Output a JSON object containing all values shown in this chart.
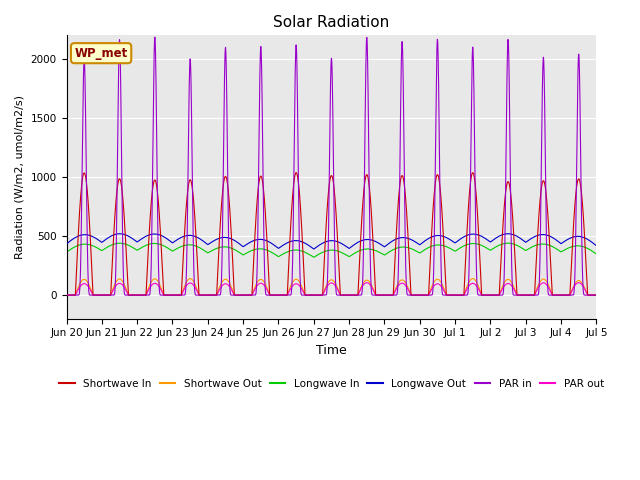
{
  "title": "Solar Radiation",
  "xlabel": "Time",
  "ylabel": "Radiation (W/m2, umol/m2/s)",
  "ylim": [
    -200,
    2200
  ],
  "n_days": 15,
  "background_color": "#e8e8e8",
  "fig_background_color": "#ffffff",
  "grid_color": "#ffffff",
  "label_box_text": "WP_met",
  "label_box_facecolor": "#ffffcc",
  "label_box_edgecolor": "#cc8800",
  "label_box_textcolor": "#880000",
  "tick_labels": [
    "Jun 20",
    "Jun 21",
    "Jun 22",
    "Jun 23",
    "Jun 24",
    "Jun 25",
    "Jun 26",
    "Jun 27",
    "Jun 28",
    "Jun 29",
    "Jun 30",
    "Jul 1",
    "Jul 2",
    "Jul 3",
    "Jul 4",
    "Jul 5"
  ],
  "series": {
    "shortwave_in": {
      "color": "#cc0000",
      "label": "Shortwave In",
      "peak": 1000,
      "rise": 0.25,
      "fall": 0.75
    },
    "shortwave_out": {
      "color": "#ff9900",
      "label": "Shortwave Out",
      "peak": 130,
      "rise": 0.25,
      "fall": 0.75
    },
    "longwave_in": {
      "color": "#00cc00",
      "label": "Longwave In",
      "baseline": 350,
      "amplitude": 60
    },
    "longwave_out": {
      "color": "#0000cc",
      "label": "Longwave Out",
      "baseline": 420,
      "amplitude": 70
    },
    "par_in": {
      "color": "#9900cc",
      "label": "PAR in",
      "peak": 2100,
      "rise": 0.3,
      "fall": 0.7
    },
    "par_out": {
      "color": "#ff00cc",
      "label": "PAR out",
      "peak": 100,
      "rise": 0.25,
      "fall": 0.75
    }
  },
  "points_per_day": 288
}
